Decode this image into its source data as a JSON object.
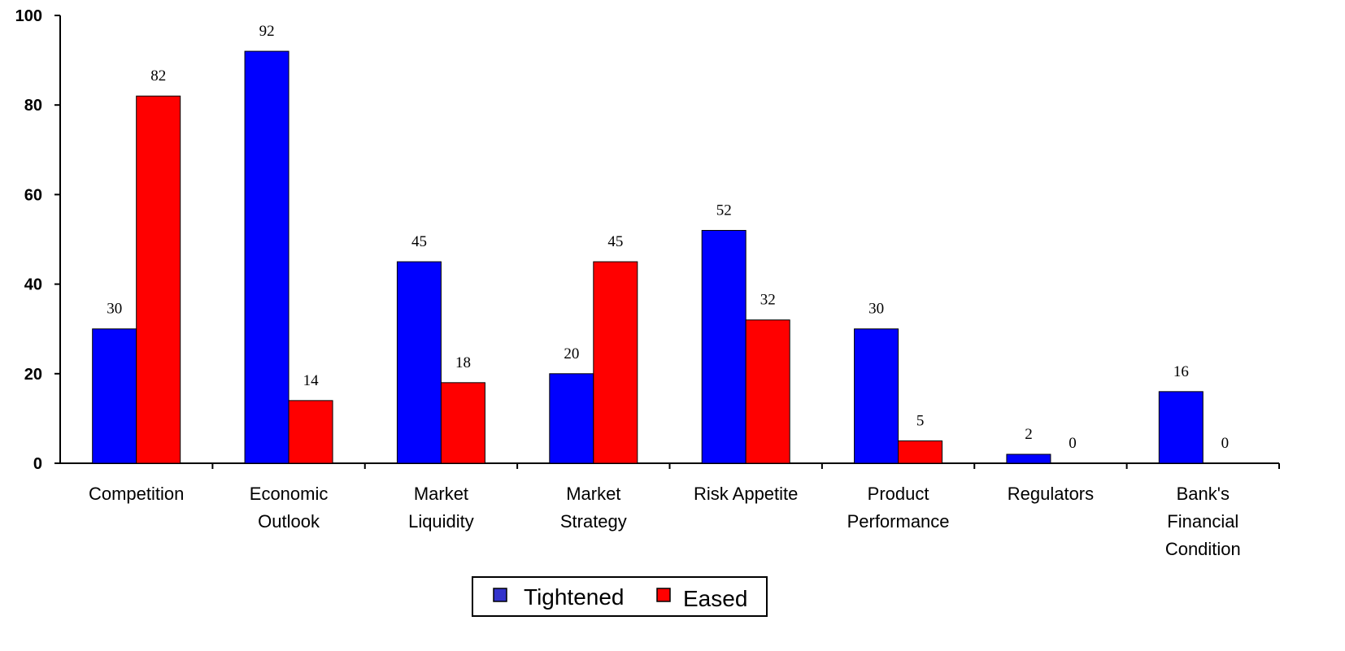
{
  "chart_data": {
    "type": "bar",
    "title": "",
    "xlabel": "",
    "ylabel": "",
    "ylim": [
      0,
      100
    ],
    "yticks": [
      0,
      20,
      40,
      60,
      80,
      100
    ],
    "grid": false,
    "legend_position": "bottom-center",
    "categories": [
      [
        "Competition"
      ],
      [
        "Economic",
        "Outlook"
      ],
      [
        "Market",
        "Liquidity"
      ],
      [
        "Market",
        "Strategy"
      ],
      [
        "Risk Appetite"
      ],
      [
        "Product",
        "Performance"
      ],
      [
        "Regulators"
      ],
      [
        "Bank's",
        "Financial",
        "Condition"
      ]
    ],
    "series": [
      {
        "name": "Tightened",
        "color": "#0000ff",
        "values": [
          30,
          92,
          45,
          20,
          52,
          30,
          2,
          16
        ],
        "labels": [
          "30",
          "92",
          "45",
          "20",
          "52",
          "30",
          "2",
          "16"
        ]
      },
      {
        "name": "Eased",
        "color": "#ff0000",
        "values": [
          82,
          14,
          18,
          45,
          32,
          5,
          0,
          0
        ],
        "labels": [
          "82",
          "14",
          "18",
          "45",
          "32",
          "5",
          "0",
          "0"
        ]
      }
    ],
    "legend_swatch_colors": [
      "#3333cc",
      "#ff0000"
    ]
  }
}
